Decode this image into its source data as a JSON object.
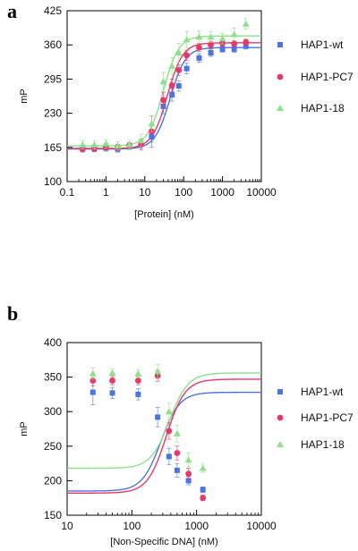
{
  "chart_data": [
    {
      "panel": "a",
      "type": "scatter",
      "xscale": "log",
      "xlabel": "[Protein]  (nM)",
      "ylabel": "mP",
      "xlim": [
        0.1,
        10000
      ],
      "ylim": [
        100,
        425
      ],
      "xticks": [
        0.1,
        1,
        10,
        100,
        1000,
        10000
      ],
      "xtick_labels": [
        "0.1",
        "1",
        "10",
        "100",
        "1000",
        "10000"
      ],
      "yticks": [
        100,
        165,
        230,
        295,
        360,
        425
      ],
      "ytick_labels": [
        "100",
        "165",
        "230",
        "295",
        "360",
        "425"
      ],
      "grid": false,
      "legend_position": "right",
      "series": [
        {
          "name": "HAP1-wt",
          "marker": "square",
          "color": "#4a74e6",
          "x": [
            0.25,
            0.5,
            1,
            2,
            4,
            8,
            15,
            30,
            50,
            75,
            120,
            250,
            500,
            1000,
            2000,
            4000
          ],
          "y": [
            163,
            163,
            164,
            162,
            167,
            172,
            185,
            243,
            265,
            282,
            315,
            335,
            345,
            352,
            352,
            358
          ],
          "err": [
            6,
            6,
            6,
            6,
            6,
            8,
            10,
            14,
            12,
            10,
            10,
            8,
            7,
            6,
            6,
            6
          ]
        },
        {
          "name": "HAP1-PC7",
          "marker": "circle",
          "color": "#e8386a",
          "x": [
            0.25,
            0.5,
            1,
            2,
            4,
            8,
            15,
            30,
            50,
            75,
            120,
            250,
            500,
            1000,
            2000,
            4000
          ],
          "y": [
            162,
            163,
            166,
            165,
            168,
            170,
            195,
            255,
            283,
            312,
            340,
            355,
            360,
            363,
            362,
            365
          ],
          "err": [
            6,
            6,
            6,
            6,
            6,
            10,
            30,
            14,
            12,
            10,
            10,
            8,
            7,
            6,
            6,
            6
          ]
        },
        {
          "name": "HAP1-18",
          "marker": "triangle",
          "color": "#8ee08a",
          "x": [
            0.25,
            0.5,
            1,
            2,
            4,
            8,
            15,
            30,
            50,
            75,
            120,
            250,
            500,
            1000,
            2000,
            4000
          ],
          "y": [
            170,
            170,
            172,
            168,
            170,
            178,
            210,
            290,
            320,
            345,
            370,
            375,
            375,
            372,
            380,
            400
          ],
          "err": [
            8,
            8,
            8,
            8,
            8,
            12,
            15,
            18,
            16,
            18,
            15,
            12,
            10,
            10,
            12,
            10
          ]
        }
      ],
      "fits": [
        {
          "name": "HAP1-wt",
          "bottom": 162,
          "top": 355,
          "ec50": 45,
          "hill": 2.2
        },
        {
          "name": "HAP1-PC7",
          "bottom": 163,
          "top": 364,
          "ec50": 38,
          "hill": 2.2
        },
        {
          "name": "HAP1-18",
          "bottom": 168,
          "top": 377,
          "ec50": 30,
          "hill": 2.2
        }
      ]
    },
    {
      "panel": "b",
      "type": "scatter",
      "xscale": "log",
      "xlabel": "[Non-Specific DNA]  (nM)",
      "ylabel": "mP",
      "xlim": [
        10,
        10000
      ],
      "ylim": [
        150,
        400
      ],
      "xticks": [
        10,
        100,
        1000,
        10000
      ],
      "xtick_labels": [
        "10",
        "100",
        "1000",
        "10000"
      ],
      "yticks": [
        150,
        200,
        250,
        300,
        350,
        400
      ],
      "ytick_labels": [
        "150",
        "200",
        "250",
        "300",
        "350",
        "400"
      ],
      "grid": false,
      "legend_position": "right",
      "series": [
        {
          "name": "HAP1-wt",
          "marker": "square",
          "color": "#4a74e6",
          "x": [
            25,
            50,
            125,
            250,
            375,
            500,
            750,
            1250
          ],
          "y": [
            328,
            327,
            325,
            292,
            235,
            215,
            200,
            187
          ],
          "err": [
            18,
            8,
            8,
            14,
            12,
            10,
            6,
            4
          ]
        },
        {
          "name": "HAP1-PC7",
          "marker": "circle",
          "color": "#e8386a",
          "x": [
            25,
            50,
            125,
            250,
            375,
            500,
            750,
            1250
          ],
          "y": [
            345,
            345,
            345,
            352,
            272,
            240,
            210,
            175
          ],
          "err": [
            8,
            6,
            6,
            8,
            12,
            10,
            8,
            4
          ]
        },
        {
          "name": "HAP1-18",
          "marker": "triangle",
          "color": "#8ee08a",
          "x": [
            25,
            50,
            125,
            250,
            375,
            500,
            750,
            1250
          ],
          "y": [
            355,
            356,
            355,
            358,
            300,
            268,
            230,
            218
          ],
          "err": [
            8,
            6,
            6,
            10,
            12,
            12,
            10,
            6
          ]
        }
      ],
      "fits": [
        {
          "name": "HAP1-wt",
          "bottom": 185,
          "top": 328,
          "ec50": 280,
          "hill": 3.0
        },
        {
          "name": "HAP1-PC7",
          "bottom": 182,
          "top": 347,
          "ec50": 340,
          "hill": 3.0
        },
        {
          "name": "HAP1-18",
          "bottom": 218,
          "top": 356,
          "ec50": 380,
          "hill": 3.0
        }
      ]
    }
  ],
  "panel_letters": {
    "a": "a",
    "b": "b"
  }
}
